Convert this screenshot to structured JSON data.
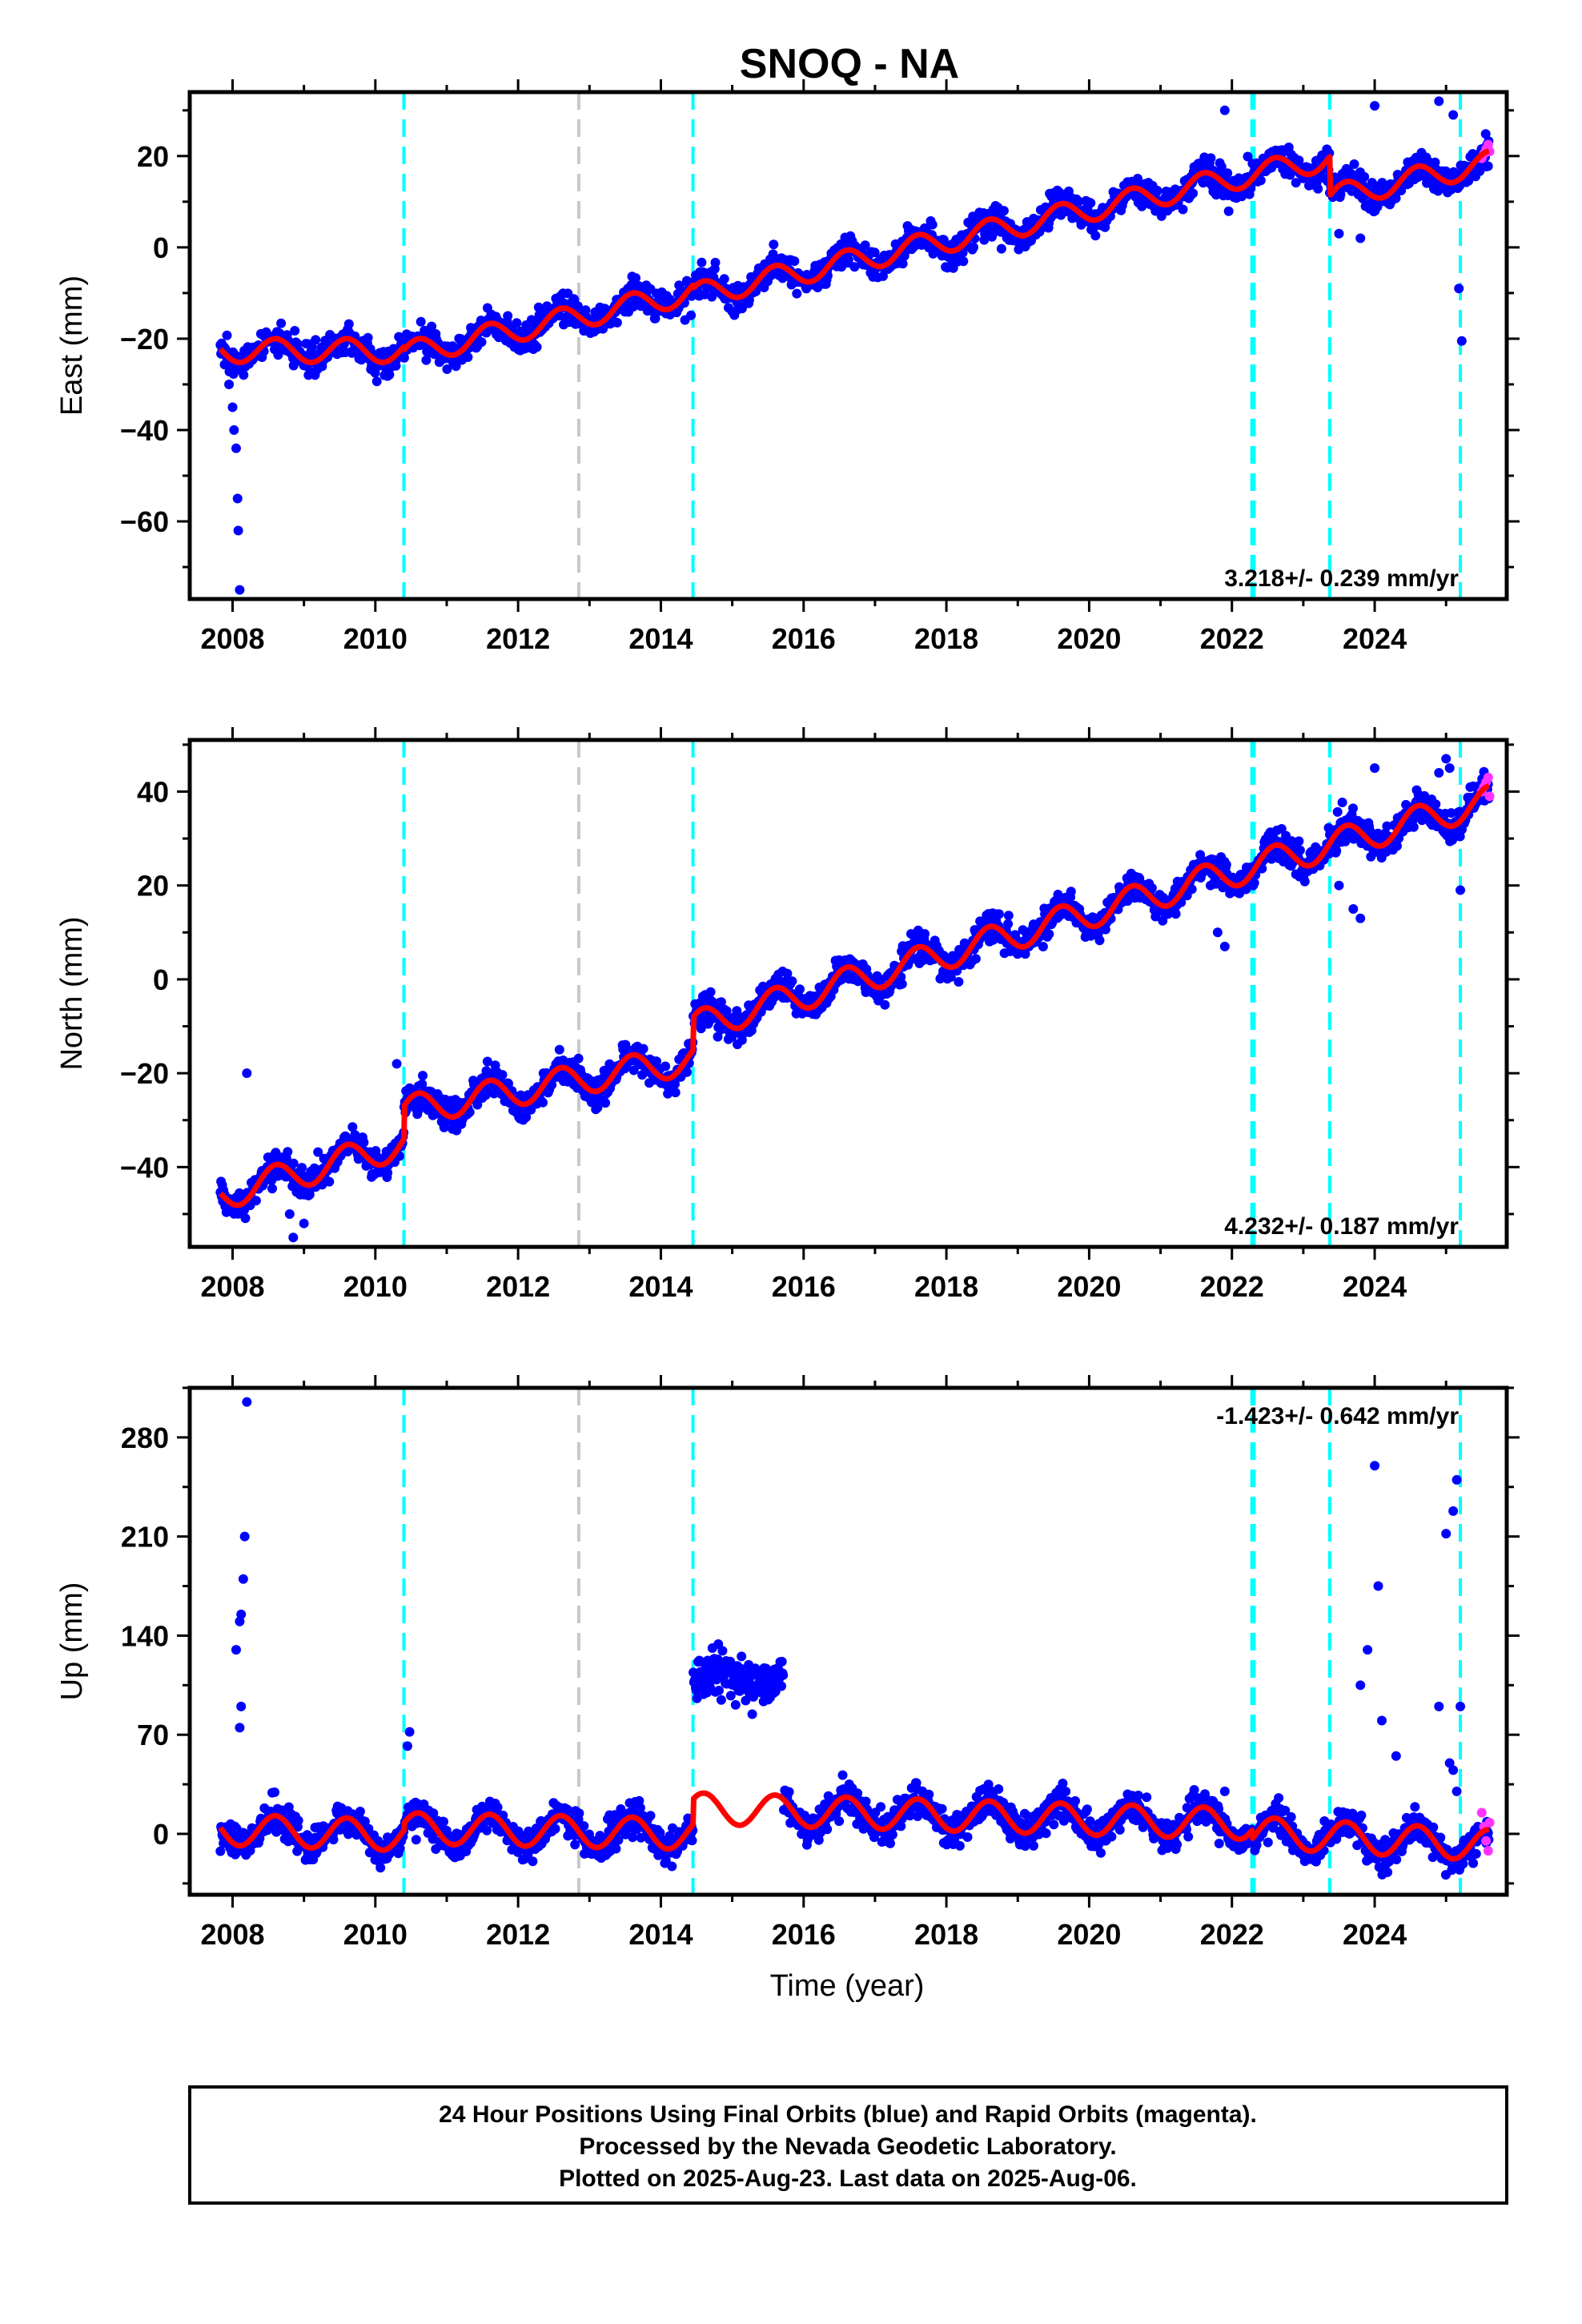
{
  "chart_data": {
    "type": "scatter",
    "title": "SNOQ - NA",
    "xlabel": "Time (year)",
    "xlim": [
      2007.4,
      2025.85
    ],
    "x_ticks": [
      "2008",
      "2010",
      "2012",
      "2014",
      "2016",
      "2018",
      "2020",
      "2022",
      "2024"
    ],
    "legend": "none",
    "grid": false,
    "colors": {
      "final_orbits": "#0000ff",
      "rapid_orbits": "#ff33ff",
      "model_fit": "#ff0000",
      "equipment_change": "#00ffff",
      "other_event": "#c8c8c8"
    },
    "events": {
      "equipment_change": [
        2010.4,
        2014.45,
        2022.28,
        2022.31,
        2023.37,
        2025.2
      ],
      "other_event": [
        2012.85
      ]
    },
    "panels": [
      {
        "name": "east",
        "ylabel": "East (mm)",
        "ylim": [
          -77,
          34
        ],
        "y_ticks": [
          "20",
          "0",
          "−20",
          "−40",
          "−60"
        ],
        "rate_label": "3.218+/- 0.239 mm/yr",
        "rate_mm_yr": 3.218,
        "rate_sigma_mm_yr": 0.239,
        "seasonal_amp": 2.6,
        "noise": 1.6,
        "fit_knots": [
          [
            2007.83,
            -22.6
          ],
          [
            2010.4,
            -22.6
          ],
          [
            2010.4,
            -23.3
          ],
          [
            2014.45,
            -9.8
          ],
          [
            2014.45,
            -10.5
          ],
          [
            2022.28,
            16.0
          ],
          [
            2023.37,
            19.5
          ],
          [
            2023.37,
            11.0
          ],
          [
            2025.6,
            18.5
          ]
        ],
        "outliers": [
          [
            2007.95,
            -30
          ],
          [
            2008.0,
            -35
          ],
          [
            2008.02,
            -40
          ],
          [
            2008.05,
            -44
          ],
          [
            2008.07,
            -55
          ],
          [
            2008.08,
            -62
          ],
          [
            2008.1,
            -75
          ],
          [
            2021.9,
            30
          ],
          [
            2024.0,
            31
          ],
          [
            2024.9,
            32
          ],
          [
            2025.1,
            29
          ],
          [
            2025.18,
            -9
          ],
          [
            2025.22,
            -20.5
          ],
          [
            2023.5,
            3
          ],
          [
            2023.8,
            2
          ]
        ],
        "rapid_points": [
          [
            2025.5,
            19.5
          ],
          [
            2025.53,
            20.5
          ],
          [
            2025.56,
            21.5
          ],
          [
            2025.59,
            22.5
          ],
          [
            2025.61,
            21
          ]
        ]
      },
      {
        "name": "north",
        "ylabel": "North (mm)",
        "ylim": [
          -57,
          51
        ],
        "y_ticks": [
          "40",
          "20",
          "0",
          "−20",
          "−40"
        ],
        "rate_label": "4.232+/- 0.187 mm/yr",
        "rate_mm_yr": 4.232,
        "rate_sigma_mm_yr": 0.187,
        "seasonal_amp": 3.2,
        "noise": 1.6,
        "fit_knots": [
          [
            2007.83,
            -46.0
          ],
          [
            2010.4,
            -35.0
          ],
          [
            2010.4,
            -28.0
          ],
          [
            2014.45,
            -17.0
          ],
          [
            2014.45,
            -10.0
          ],
          [
            2022.28,
            24.0
          ],
          [
            2025.6,
            38.0
          ]
        ],
        "outliers": [
          [
            2008.2,
            -20
          ],
          [
            2008.8,
            -50
          ],
          [
            2008.85,
            -55
          ],
          [
            2009.0,
            -52
          ],
          [
            2010.3,
            -18
          ],
          [
            2021.7,
            20
          ],
          [
            2021.8,
            10
          ],
          [
            2021.9,
            7
          ],
          [
            2023.5,
            20
          ],
          [
            2023.7,
            15
          ],
          [
            2023.8,
            13
          ],
          [
            2024.0,
            45
          ],
          [
            2025.0,
            47
          ],
          [
            2025.05,
            45
          ],
          [
            2025.2,
            19
          ],
          [
            2024.9,
            44
          ]
        ],
        "rapid_points": [
          [
            2025.5,
            40
          ],
          [
            2025.53,
            41
          ],
          [
            2025.56,
            42
          ],
          [
            2025.59,
            43
          ],
          [
            2025.61,
            39
          ]
        ]
      },
      {
        "name": "up",
        "ylabel": "Up (mm)",
        "ylim": [
          -43,
          315
        ],
        "y_ticks": [
          "280",
          "210",
          "140",
          "70",
          "0"
        ],
        "rate_label": "-1.423+/- 0.642 mm/yr",
        "rate_mm_yr": -1.423,
        "rate_sigma_mm_yr": 0.642,
        "seasonal_amp": 11.0,
        "noise": 5.5,
        "fit_knots": [
          [
            2007.83,
            3.0
          ],
          [
            2010.4,
            -1.0
          ],
          [
            2010.4,
            4.0
          ],
          [
            2014.45,
            0.0
          ],
          [
            2014.45,
            18.0
          ],
          [
            2022.28,
            7.0
          ],
          [
            2022.28,
            1.0
          ],
          [
            2025.6,
            -8.0
          ]
        ],
        "outliers": [
          [
            2008.05,
            130
          ],
          [
            2008.1,
            150
          ],
          [
            2008.12,
            155
          ],
          [
            2008.15,
            180
          ],
          [
            2008.17,
            210
          ],
          [
            2008.2,
            305
          ],
          [
            2008.12,
            90
          ],
          [
            2008.1,
            75
          ],
          [
            2010.45,
            62
          ],
          [
            2010.48,
            72
          ],
          [
            2024.0,
            260
          ],
          [
            2024.05,
            175
          ],
          [
            2023.8,
            105
          ],
          [
            2023.9,
            130
          ],
          [
            2024.1,
            80
          ],
          [
            2024.3,
            55
          ],
          [
            2024.9,
            90
          ],
          [
            2025.0,
            212
          ],
          [
            2025.1,
            228
          ],
          [
            2025.15,
            250
          ],
          [
            2025.2,
            90
          ],
          [
            2025.05,
            50
          ],
          [
            2025.1,
            45
          ],
          [
            2025.15,
            30
          ],
          [
            2021.9,
            30
          ]
        ],
        "offset_block": {
          "x0": 2014.45,
          "x1": 2015.72,
          "center": 110,
          "spread": 8
        },
        "rapid_points": [
          [
            2025.5,
            15
          ],
          [
            2025.53,
            5
          ],
          [
            2025.56,
            -5
          ],
          [
            2025.59,
            -12
          ],
          [
            2025.61,
            8
          ]
        ]
      }
    ]
  },
  "footer": {
    "line1": "24 Hour Positions Using Final Orbits (blue) and Rapid Orbits (magenta).",
    "line2": "Processed by the Nevada Geodetic Laboratory.",
    "line3": "Plotted on 2025-Aug-23. Last data on 2025-Aug-06."
  }
}
